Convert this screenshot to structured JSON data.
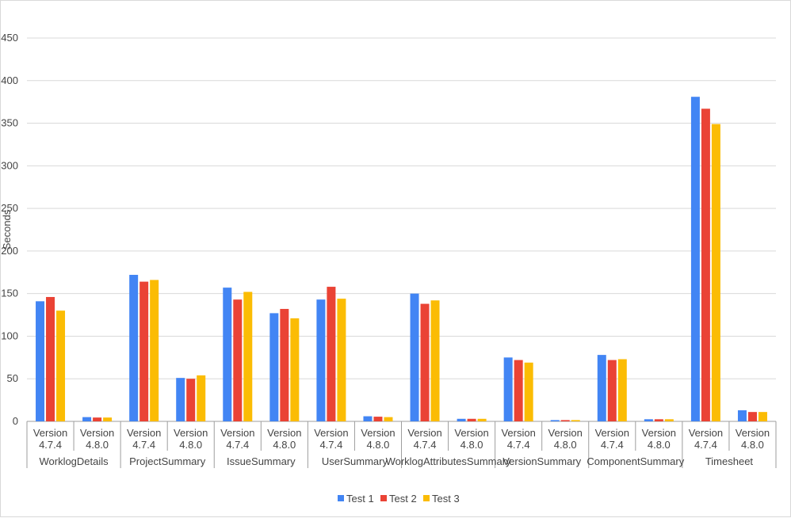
{
  "chart_data": {
    "type": "bar",
    "title": "",
    "ylabel": "Seconds",
    "xlabel": "",
    "ylim": [
      0,
      450
    ],
    "yticks": [
      0,
      50,
      100,
      150,
      200,
      250,
      300,
      350,
      400,
      450
    ],
    "grid": true,
    "legend_position": "bottom",
    "groups": [
      {
        "label": "WorklogDetails",
        "versions": [
          "Version 4.7.4",
          "Version 4.8.0"
        ]
      },
      {
        "label": "ProjectSummary",
        "versions": [
          "Version 4.7.4",
          "Version 4.8.0"
        ]
      },
      {
        "label": "IssueSummary",
        "versions": [
          "Version 4.7.4",
          "Version 4.8.0"
        ]
      },
      {
        "label": "UserSummary",
        "versions": [
          "Version 4.7.4",
          "Version 4.8.0"
        ]
      },
      {
        "label": "WorklogAttributesSummary",
        "versions": [
          "Version 4.7.4",
          "Version 4.8.0"
        ]
      },
      {
        "label": "VersionSummary",
        "versions": [
          "Version 4.7.4",
          "Version 4.8.0"
        ]
      },
      {
        "label": "ComponentSummary",
        "versions": [
          "Version 4.7.4",
          "Version 4.8.0"
        ]
      },
      {
        "label": "Timesheet",
        "versions": [
          "Version 4.7.4",
          "Version 4.8.0"
        ]
      }
    ],
    "series": [
      {
        "name": "Test 1",
        "color": "#4285f4",
        "values": [
          141,
          5,
          172,
          51,
          157,
          127,
          143,
          6,
          150,
          3,
          75,
          1.5,
          78,
          2.5,
          381,
          13
        ]
      },
      {
        "name": "Test 2",
        "color": "#ea4335",
        "values": [
          146,
          4.5,
          164,
          50,
          143,
          132,
          158,
          5.5,
          138,
          3,
          72,
          1.5,
          72,
          2.5,
          367,
          11
        ]
      },
      {
        "name": "Test 3",
        "color": "#fbbc04",
        "values": [
          130,
          4.5,
          166,
          54,
          152,
          121,
          144,
          5,
          142,
          3,
          69,
          1.5,
          73,
          2.5,
          349,
          11
        ]
      }
    ]
  }
}
